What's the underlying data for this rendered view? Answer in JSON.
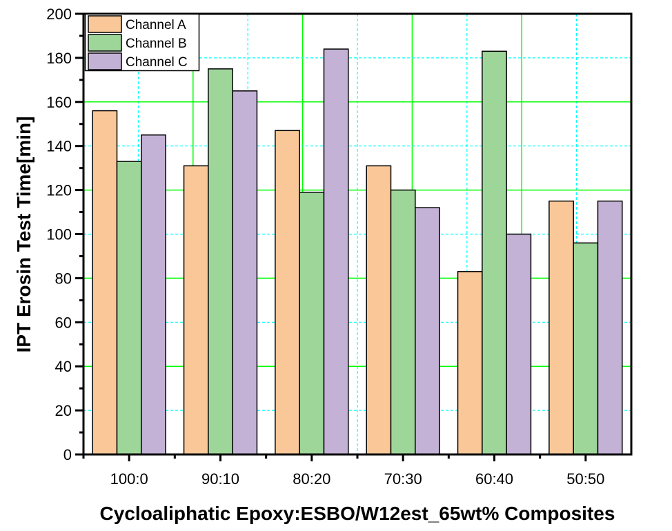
{
  "chart_data": {
    "type": "bar",
    "title": "",
    "xlabel": "Cycloaliphatic Epoxy:ESBO/W12est_65wt% Composites",
    "ylabel": "IPT Erosin Test Time[min]",
    "ylim": [
      0,
      200
    ],
    "yticks": [
      "0",
      "20",
      "40",
      "60",
      "80",
      "100",
      "120",
      "140",
      "160",
      "180",
      "200"
    ],
    "categories": [
      "100:0",
      "90:10",
      "80:20",
      "70:30",
      "60:40",
      "50:50"
    ],
    "series": [
      {
        "name": "Channel A",
        "color": "#FAC898",
        "values": [
          156,
          131,
          147,
          131,
          83,
          115
        ]
      },
      {
        "name": "Channel B",
        "color": "#9ED69A",
        "values": [
          133,
          175,
          119,
          120,
          183,
          96
        ]
      },
      {
        "name": "Channel C",
        "color": "#C3B2D6",
        "values": [
          145,
          165,
          184,
          112,
          100,
          115
        ]
      }
    ],
    "grid": true,
    "legend_position": "top-left"
  }
}
